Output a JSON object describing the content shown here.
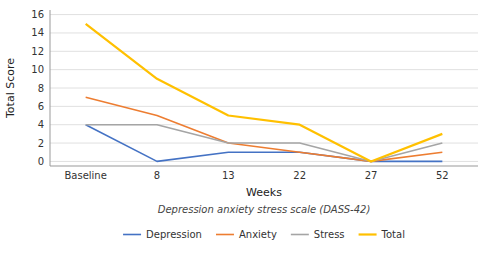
{
  "chart_data": {
    "type": "line",
    "subtitle": "Depression anxiety stress scale (DASS-42)",
    "x_label": "Weeks",
    "y_label": "Total Score",
    "categories": [
      "Baseline",
      "8",
      "13",
      "22",
      "27",
      "52"
    ],
    "series": [
      {
        "name": "Depression",
        "color": "#4472C4",
        "values": [
          4,
          0,
          1,
          1,
          0,
          0
        ]
      },
      {
        "name": "Anxiety",
        "color": "#ED7D31",
        "values": [
          7,
          5,
          2,
          1,
          0,
          1
        ]
      },
      {
        "name": "Stress",
        "color": "#A5A5A5",
        "values": [
          4,
          4,
          2,
          2,
          0,
          2
        ]
      },
      {
        "name": "Total",
        "color": "#FFC000",
        "values": [
          15,
          9,
          5,
          4,
          0,
          3
        ]
      }
    ],
    "ylim": [
      -0.5,
      16.5
    ],
    "yticks": [
      0,
      2,
      4,
      6,
      8,
      10,
      12,
      14,
      16
    ],
    "grid": true,
    "legend": "bottom"
  }
}
